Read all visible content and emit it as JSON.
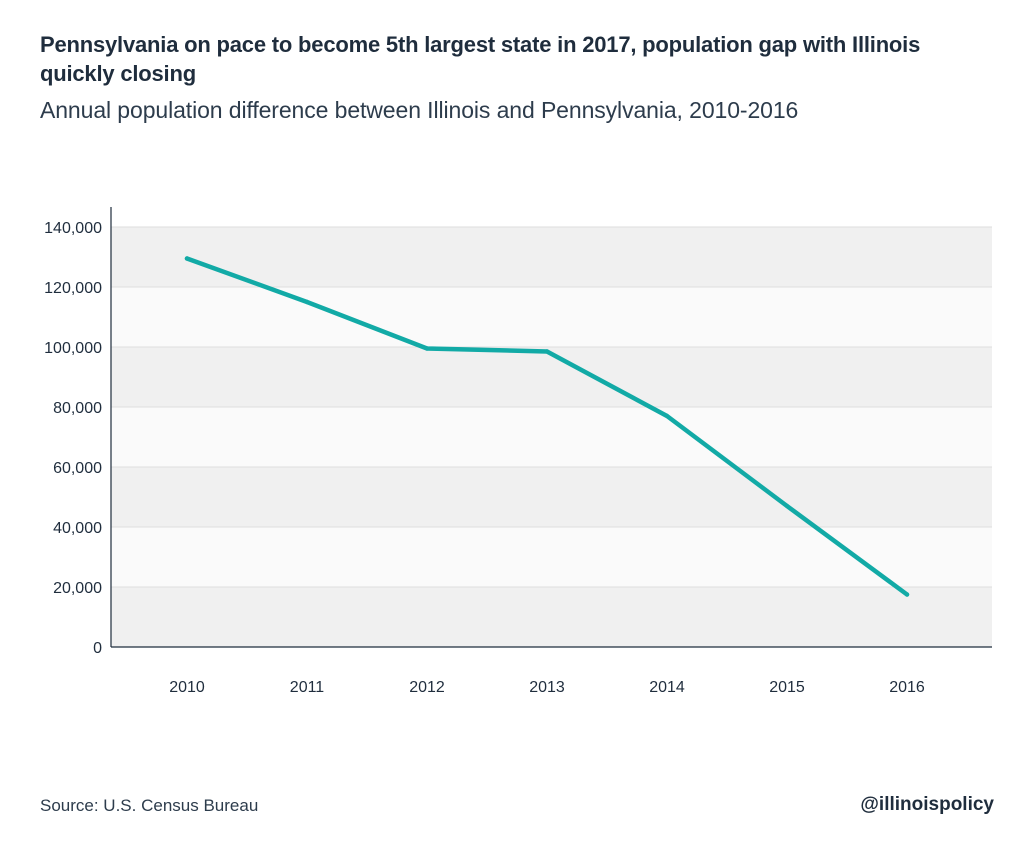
{
  "header": {
    "title": "Pennsylvania on pace to become 5th largest state in 2017, population gap with Illinois quickly closing",
    "subtitle": "Annual population difference between Illinois and Pennsylvania, 2010-2016"
  },
  "footer": {
    "source": "Source: U.S. Census Bureau",
    "brand": "@illinoispolicy"
  },
  "colors": {
    "line": "#12aaa6",
    "band_dark": "#f0f0f0",
    "band_light": "#fafafa",
    "axis": "#1f2d3d",
    "text": "#1f2d3d"
  },
  "chart_data": {
    "type": "line",
    "title": "Pennsylvania on pace to become 5th largest state in 2017, population gap with Illinois quickly closing",
    "subtitle": "Annual population difference between Illinois and Pennsylvania, 2010-2016",
    "xlabel": "",
    "ylabel": "",
    "categories": [
      "2010",
      "2011",
      "2012",
      "2013",
      "2014",
      "2015",
      "2016"
    ],
    "series": [
      {
        "values": [
          129500,
          115000,
          99500,
          98500,
          77000,
          47000,
          17500
        ]
      }
    ],
    "ylim": [
      0,
      140000
    ],
    "yticks": [
      0,
      20000,
      40000,
      60000,
      80000,
      100000,
      120000,
      140000
    ],
    "ytick_labels": [
      "0",
      "20,000",
      "40,000",
      "60,000",
      "80,000",
      "100,000",
      "120,000",
      "140,000"
    ],
    "grid": true,
    "legend": "none"
  }
}
